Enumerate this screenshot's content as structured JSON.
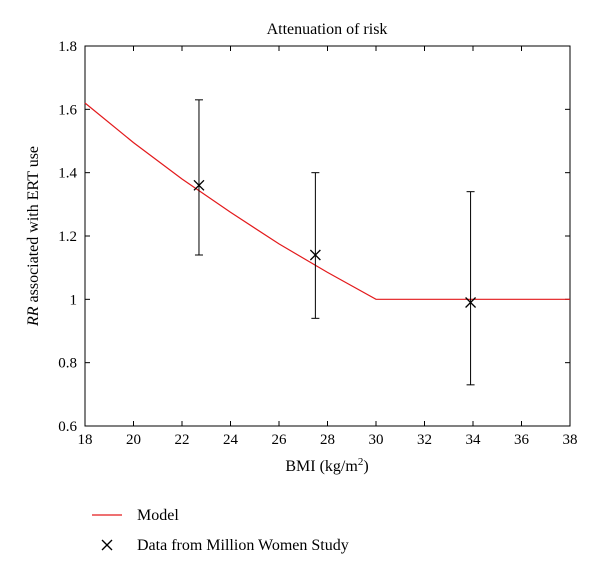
{
  "chart_data": {
    "type": "line",
    "title": "Attenuation of risk",
    "xlabel": {
      "main": "BMI (kg/m",
      "sup": "2",
      "end": ")"
    },
    "ylabel": {
      "italic": "RR",
      "rest": " associated with ERT use"
    },
    "xlim": [
      18,
      38
    ],
    "ylim": [
      0.6,
      1.8
    ],
    "xticks": [
      18,
      20,
      22,
      24,
      26,
      28,
      30,
      32,
      34,
      36,
      38
    ],
    "yticks": [
      0.6,
      0.8,
      1.0,
      1.2,
      1.4,
      1.6,
      1.8
    ],
    "ytick_labels": [
      "0.6",
      "0.8",
      "1",
      "1.2",
      "1.4",
      "1.6",
      "1.8"
    ],
    "grid": false,
    "legend_placement": "below",
    "series": [
      {
        "name": "Model",
        "kind": "line",
        "color": "#e31a1c",
        "x": [
          18,
          20,
          22,
          24,
          26,
          28,
          30,
          32,
          34,
          36,
          38
        ],
        "y": [
          1.62,
          1.495,
          1.38,
          1.275,
          1.175,
          1.085,
          1.0,
          1.0,
          1.0,
          1.0,
          1.0
        ]
      },
      {
        "name": "Data from Million Women Study",
        "kind": "errorbar",
        "color": "#000000",
        "x": [
          22.7,
          27.5,
          33.9
        ],
        "y": [
          1.36,
          1.14,
          0.99
        ],
        "lower": [
          1.14,
          0.94,
          0.73
        ],
        "upper": [
          1.63,
          1.4,
          1.34
        ]
      }
    ]
  }
}
